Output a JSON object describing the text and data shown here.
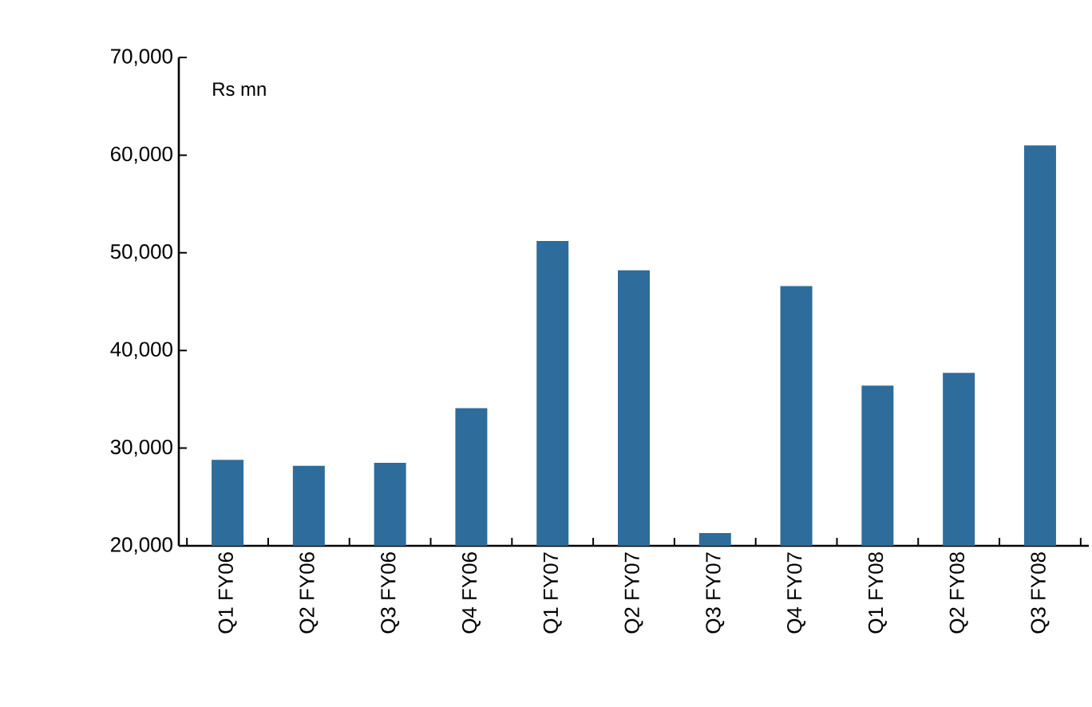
{
  "chart_data": {
    "type": "bar",
    "categories": [
      "Q1 FY06",
      "Q2 FY06",
      "Q3 FY06",
      "Q4 FY06",
      "Q1 FY07",
      "Q2 FY07",
      "Q3 FY07",
      "Q4 FY07",
      "Q1 FY08",
      "Q2 FY08",
      "Q3 FY08"
    ],
    "values": [
      28800,
      28200,
      28500,
      34100,
      51200,
      48200,
      21300,
      46600,
      36400,
      37700,
      61000
    ],
    "color": "#2e6c9b",
    "ylim": [
      20000,
      70000
    ],
    "yticks": [
      {
        "value": 20000,
        "label": "20,000"
      },
      {
        "value": 30000,
        "label": "30,000"
      },
      {
        "value": 40000,
        "label": "40,000"
      },
      {
        "value": 50000,
        "label": "50,000"
      },
      {
        "value": 60000,
        "label": "60,000"
      },
      {
        "value": 70000,
        "label": "70,000"
      }
    ],
    "ylabel": "Rs mn"
  }
}
